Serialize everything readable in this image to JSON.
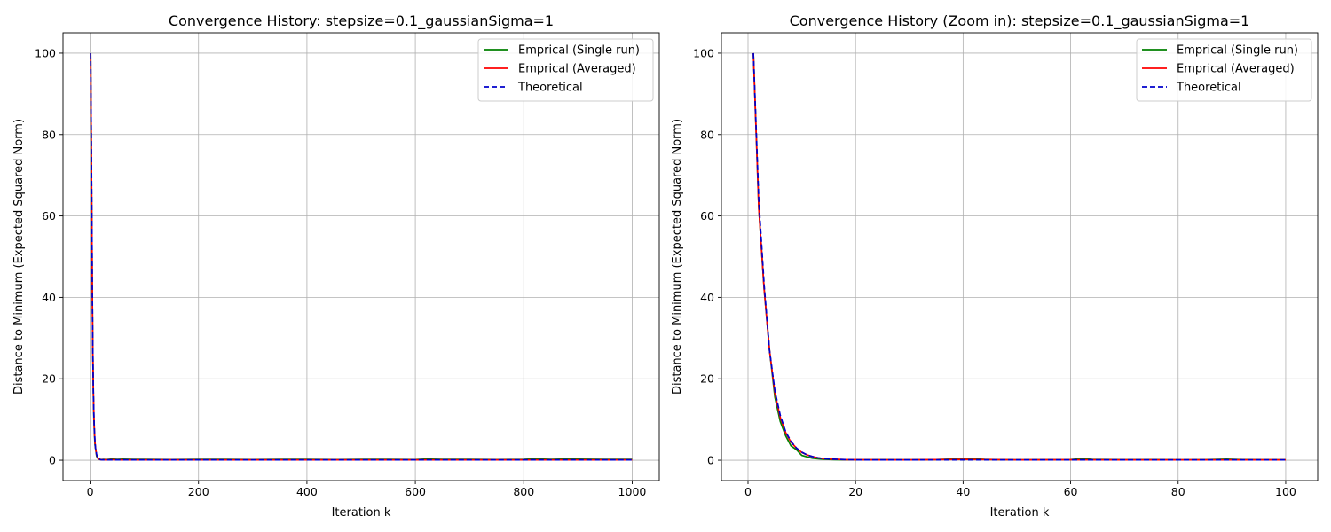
{
  "colors": {
    "single": "#008000",
    "averaged": "#ff0000",
    "theoretical": "#0000cc",
    "grid": "#b0b0b0",
    "axes": "#000000"
  },
  "chart_data": [
    {
      "type": "line",
      "title": "Convergence History: stepsize=0.1_gaussianSigma=1",
      "xlabel": "Iteration k",
      "ylabel": "Distance to Minimum (Expected Squared Norm)",
      "xlim": [
        -50,
        1050
      ],
      "ylim": [
        -5,
        105
      ],
      "xticks": [
        0,
        200,
        400,
        600,
        800,
        1000
      ],
      "yticks": [
        0,
        20,
        40,
        60,
        80,
        100
      ],
      "xtick_labels": [
        "0",
        "200",
        "400",
        "600",
        "800",
        "1000"
      ],
      "ytick_labels": [
        "0",
        "20",
        "40",
        "60",
        "80",
        "100"
      ],
      "grid": true,
      "legend_position": "top-right",
      "series": [
        {
          "name": "Emprical (Single run)",
          "style": "solid",
          "x": [
            1,
            2,
            3,
            4,
            5,
            6,
            7,
            8,
            9,
            10,
            12,
            14,
            16,
            18,
            20,
            25,
            30,
            40,
            50,
            60,
            80,
            100,
            150,
            200,
            250,
            300,
            350,
            400,
            450,
            500,
            550,
            600,
            620,
            650,
            700,
            750,
            800,
            820,
            850,
            880,
            900,
            950,
            1000
          ],
          "y": [
            100,
            80,
            62,
            42,
            27,
            16,
            10,
            6.5,
            3.8,
            2.9,
            1.0,
            0.5,
            0.3,
            0.2,
            0.15,
            0.2,
            0.15,
            0.3,
            0.2,
            0.25,
            0.2,
            0.2,
            0.15,
            0.2,
            0.2,
            0.15,
            0.2,
            0.2,
            0.15,
            0.2,
            0.2,
            0.15,
            0.3,
            0.2,
            0.2,
            0.15,
            0.2,
            0.35,
            0.2,
            0.3,
            0.25,
            0.2,
            0.2
          ]
        },
        {
          "name": "Emprical (Averaged)",
          "style": "solid",
          "x": [
            1,
            2,
            3,
            4,
            5,
            6,
            7,
            8,
            9,
            10,
            12,
            14,
            16,
            18,
            20,
            25,
            30,
            40,
            50,
            60,
            80,
            100,
            200,
            300,
            400,
            500,
            600,
            700,
            800,
            900,
            1000
          ],
          "y": [
            100,
            80,
            62,
            42,
            27,
            17,
            11,
            7.0,
            4.5,
            3.0,
            1.3,
            0.6,
            0.3,
            0.2,
            0.15,
            0.12,
            0.1,
            0.15,
            0.1,
            0.1,
            0.1,
            0.1,
            0.1,
            0.1,
            0.1,
            0.1,
            0.1,
            0.1,
            0.1,
            0.1,
            0.1
          ]
        },
        {
          "name": "Theoretical",
          "style": "dashed",
          "x": [
            1,
            2,
            3,
            4,
            5,
            6,
            7,
            8,
            9,
            10,
            12,
            14,
            16,
            18,
            20,
            25,
            30,
            40,
            50,
            100,
            200,
            300,
            400,
            500,
            600,
            700,
            800,
            900,
            1000
          ],
          "y": [
            100,
            81,
            64,
            43,
            27,
            17,
            11,
            7.2,
            4.6,
            3.0,
            1.4,
            0.7,
            0.35,
            0.2,
            0.12,
            0.1,
            0.1,
            0.1,
            0.1,
            0.1,
            0.1,
            0.1,
            0.1,
            0.1,
            0.1,
            0.1,
            0.1,
            0.1,
            0.1
          ]
        }
      ]
    },
    {
      "type": "line",
      "title": "Convergence History (Zoom in): stepsize=0.1_gaussianSigma=1",
      "xlabel": "Iteration k",
      "ylabel": "Distance to Minimum (Expected Squared Norm)",
      "xlim": [
        -4.95,
        105.95
      ],
      "ylim": [
        -5,
        105
      ],
      "xticks": [
        0,
        20,
        40,
        60,
        80,
        100
      ],
      "yticks": [
        0,
        20,
        40,
        60,
        80,
        100
      ],
      "xtick_labels": [
        "0",
        "20",
        "40",
        "60",
        "80",
        "100"
      ],
      "ytick_labels": [
        "0",
        "20",
        "40",
        "60",
        "80",
        "100"
      ],
      "grid": true,
      "legend_position": "top-right",
      "series": [
        {
          "name": "Emprical (Single run)",
          "style": "solid",
          "x": [
            1,
            2,
            3,
            4,
            5,
            6,
            7,
            8,
            9,
            10,
            11,
            12,
            13,
            14,
            15,
            16,
            18,
            20,
            25,
            30,
            35,
            38,
            40,
            42,
            44,
            46,
            50,
            55,
            60,
            62,
            64,
            70,
            75,
            80,
            85,
            89,
            92,
            95,
            100
          ],
          "y": [
            100,
            62,
            42,
            27,
            15.5,
            9.5,
            6.0,
            3.5,
            2.6,
            1.2,
            0.8,
            0.5,
            0.35,
            0.25,
            0.2,
            0.15,
            0.1,
            0.1,
            0.12,
            0.1,
            0.15,
            0.3,
            0.4,
            0.35,
            0.2,
            0.15,
            0.1,
            0.12,
            0.15,
            0.4,
            0.2,
            0.12,
            0.15,
            0.1,
            0.12,
            0.25,
            0.15,
            0.12,
            0.1
          ]
        },
        {
          "name": "Emprical (Averaged)",
          "style": "solid",
          "x": [
            1,
            2,
            3,
            4,
            5,
            6,
            7,
            8,
            9,
            10,
            11,
            12,
            13,
            14,
            16,
            18,
            20,
            25,
            30,
            40,
            50,
            60,
            70,
            80,
            90,
            100
          ],
          "y": [
            100,
            62,
            42,
            27,
            16.5,
            10.5,
            6.8,
            4.4,
            3.0,
            1.9,
            1.3,
            0.9,
            0.6,
            0.4,
            0.25,
            0.15,
            0.12,
            0.1,
            0.1,
            0.2,
            0.1,
            0.12,
            0.1,
            0.1,
            0.1,
            0.1
          ]
        },
        {
          "name": "Theoretical",
          "style": "dashed",
          "x": [
            1,
            2,
            3,
            4,
            5,
            6,
            7,
            8,
            9,
            10,
            11,
            12,
            13,
            14,
            16,
            18,
            20,
            25,
            30,
            40,
            50,
            60,
            70,
            80,
            90,
            100
          ],
          "y": [
            100,
            64,
            43,
            27,
            17,
            11,
            7.0,
            4.6,
            3.0,
            2.0,
            1.3,
            0.9,
            0.6,
            0.4,
            0.25,
            0.15,
            0.1,
            0.1,
            0.1,
            0.1,
            0.1,
            0.1,
            0.1,
            0.1,
            0.1,
            0.1
          ]
        }
      ]
    }
  ]
}
